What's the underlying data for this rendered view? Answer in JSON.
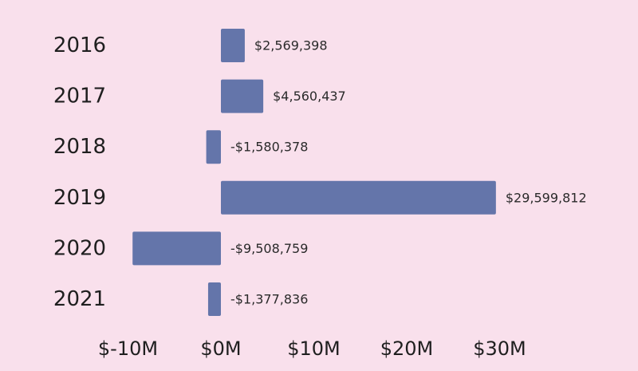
{
  "chart_data": {
    "type": "bar",
    "orientation": "horizontal",
    "categories": [
      "2016",
      "2017",
      "2018",
      "2019",
      "2020",
      "2021"
    ],
    "values": [
      2569398,
      4560437,
      -1580378,
      29599812,
      -9508759,
      -1377836
    ],
    "data_labels": [
      "$2,569,398",
      "$4,560,437",
      "-$1,580,378",
      "$29,599,812",
      "-$9,508,759",
      "-$1,377,836"
    ],
    "x_ticks": [
      {
        "value": -10000000,
        "label": "$-10M"
      },
      {
        "value": 0,
        "label": "$0M"
      },
      {
        "value": 10000000,
        "label": "$10M"
      },
      {
        "value": 20000000,
        "label": "$20M"
      },
      {
        "value": 30000000,
        "label": "$30M"
      }
    ],
    "xlim": [
      -10000000,
      30000000
    ],
    "grid": false,
    "legend": "none",
    "bar_color": "#6475aa",
    "background": "#f9e0ec"
  }
}
